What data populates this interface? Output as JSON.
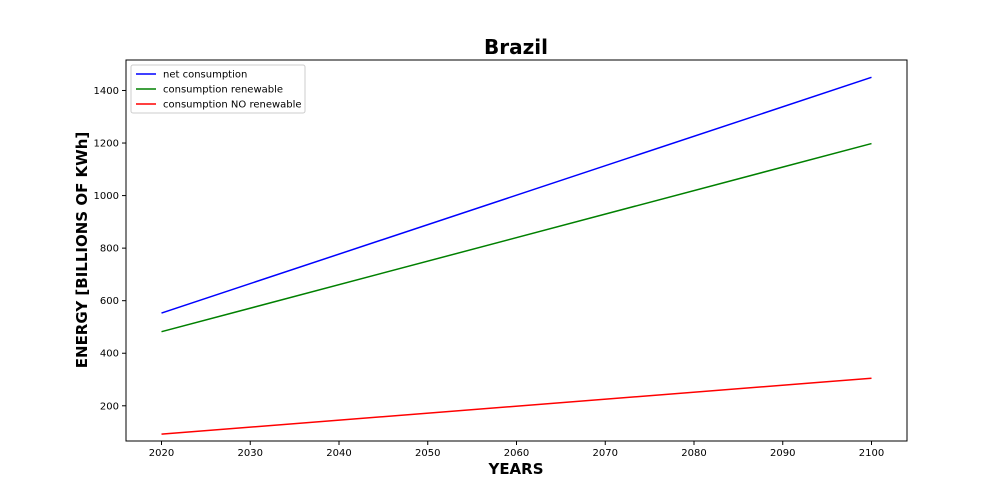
{
  "chart_data": {
    "type": "line",
    "title": "Brazil",
    "xlabel": "YEARS",
    "ylabel": "ENERGY [BILLIONS OF KWh]",
    "x": [
      2020,
      2100
    ],
    "xlim": [
      2016,
      2104
    ],
    "ylim": [
      66,
      1516
    ],
    "xticks": [
      2020,
      2030,
      2040,
      2050,
      2060,
      2070,
      2080,
      2090,
      2100
    ],
    "yticks": [
      200,
      400,
      600,
      800,
      1000,
      1200,
      1400
    ],
    "grid": false,
    "legend_position": "top-left",
    "series": [
      {
        "name": "net consumption",
        "color": "#0000ff",
        "values": [
          553,
          1450
        ]
      },
      {
        "name": "consumption renewable",
        "color": "#008000",
        "values": [
          482,
          1198
        ]
      },
      {
        "name": "consumption NO renewable",
        "color": "#ff0000",
        "values": [
          92,
          305
        ]
      }
    ]
  }
}
